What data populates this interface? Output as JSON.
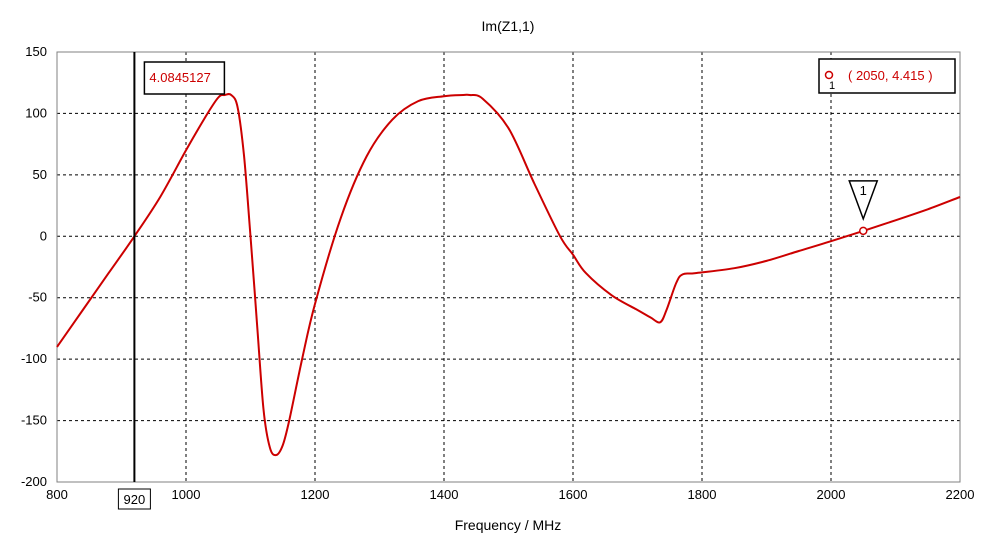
{
  "chart_data": {
    "type": "line",
    "title": "Im(Z1,1)",
    "xlabel": "Frequency / MHz",
    "ylabel": "",
    "xlim": [
      800,
      2200
    ],
    "ylim": [
      -200,
      150
    ],
    "x_ticks": [
      "800",
      "1000",
      "1200",
      "1400",
      "1600",
      "1800",
      "2000",
      "2200"
    ],
    "y_ticks": [
      "150",
      "100",
      "50",
      "0",
      "-50",
      "-100",
      "-150",
      "-200"
    ],
    "grid": true,
    "line_color": "#cc0000",
    "series": [
      {
        "x": [
          800,
          840,
          880,
          920,
          960,
          1000,
          1030,
          1050,
          1060,
          1070,
          1080,
          1090,
          1100,
          1110,
          1120,
          1130,
          1140,
          1150,
          1160,
          1180,
          1200,
          1240,
          1280,
          1320,
          1360,
          1400,
          1430,
          1440,
          1460,
          1500,
          1540,
          1580,
          1600,
          1620,
          1660,
          1700,
          1720,
          1735,
          1745,
          1760,
          1770,
          1790,
          1850,
          1900,
          1950,
          2000,
          2050,
          2100,
          2150,
          2200
        ],
        "y": [
          -90,
          -60,
          -30,
          0,
          32,
          70,
          97,
          113,
          115,
          115,
          105,
          65,
          0,
          -70,
          -140,
          -172,
          -178,
          -170,
          -150,
          -100,
          -55,
          15,
          65,
          95,
          110,
          114,
          115,
          115,
          112,
          88,
          43,
          0,
          -15,
          -30,
          -48,
          -60,
          -66,
          -70,
          -60,
          -38,
          -31,
          -30,
          -26,
          -20,
          -12,
          -4,
          4.415,
          13,
          22,
          32
        ]
      }
    ],
    "vertical_marker": {
      "x": 920,
      "x_label": "920",
      "value_label": "4.0845127"
    },
    "point_marker": {
      "id": "1",
      "x": 2050,
      "y": 4.415,
      "legend_text": "( 2050, 4.415 )"
    }
  }
}
